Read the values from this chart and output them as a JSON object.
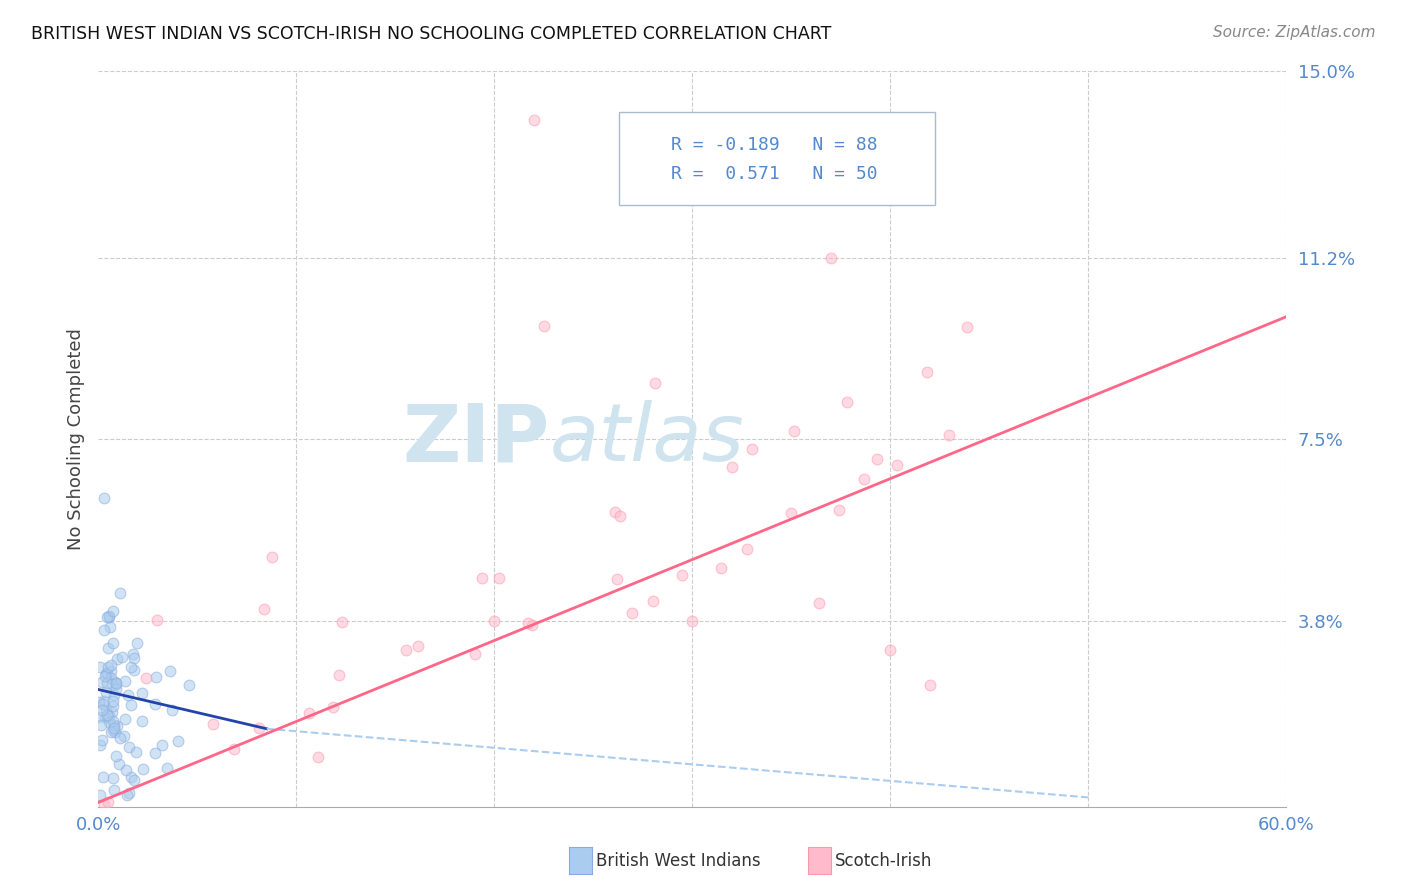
{
  "title": "BRITISH WEST INDIAN VS SCOTCH-IRISH NO SCHOOLING COMPLETED CORRELATION CHART",
  "source": "Source: ZipAtlas.com",
  "ylabel": "No Schooling Completed",
  "xlim": [
    0.0,
    0.6
  ],
  "ylim": [
    0.0,
    0.15
  ],
  "xticks": [
    0.0,
    0.1,
    0.2,
    0.3,
    0.4,
    0.5,
    0.6
  ],
  "xticklabels": [
    "0.0%",
    "",
    "",
    "",
    "",
    "",
    "60.0%"
  ],
  "ytick_vals": [
    0.0,
    0.038,
    0.075,
    0.112,
    0.15
  ],
  "yticklabels": [
    "",
    "3.8%",
    "7.5%",
    "11.2%",
    "15.0%"
  ],
  "blue_color": "#88AADD",
  "pink_color": "#FF99AA",
  "blue_fill": "#AACCEE",
  "pink_fill": "#FFBBCC",
  "blue_line_color": "#2244AA",
  "pink_line_color": "#FF6688",
  "blue_dash_color": "#AACCEE",
  "legend_R_blue": "-0.189",
  "legend_N_blue": "88",
  "legend_R_pink": "0.571",
  "legend_N_pink": "50",
  "watermark_zip": "ZIP",
  "watermark_atlas": "atlas",
  "watermark_color": "#D0E4F0",
  "grid_color": "#CCCCCC",
  "tick_color": "#5588CC",
  "bg_color": "#FFFFFF",
  "scatter_size": 60,
  "scatter_alpha": 0.55
}
